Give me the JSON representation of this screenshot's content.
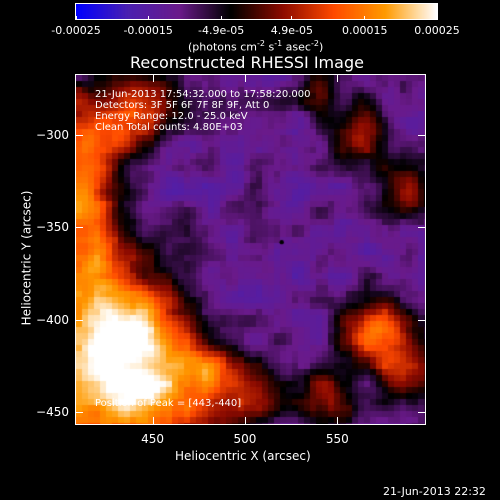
{
  "colorbar": {
    "min": -0.00025,
    "max": 0.00025,
    "tick_labels": [
      "-0.00025",
      "-0.00015",
      "-4.9e-05",
      "4.9e-05",
      "0.00015",
      "0.00025"
    ],
    "tick_values": [
      -0.00025,
      -0.00015,
      -4.9e-05,
      4.9e-05,
      0.00015,
      0.00025
    ],
    "unit_main": "(photons cm",
    "unit_sup1": "-2",
    "unit_mid": " s",
    "unit_sup2": "-1",
    "unit_end": " asec",
    "unit_sup3": "-2",
    "unit_close": ")"
  },
  "title": "Reconstructed RHESSI Image",
  "info": {
    "time_range": "21-Jun-2013 17:54:32.000 to 17:58:20.000",
    "detectors": "Detectors: 3F 5F 6F 7F 8F 9F, Att 0",
    "energy_range": "Energy Range: 12.0 - 25.0 keV",
    "clean": "Clean     Total counts: 4.80E+03",
    "peak": "Position of Peak = [443,-440]"
  },
  "axes": {
    "xlabel": "Heliocentric X (arcsec)",
    "ylabel": "Heliocentric Y (arcsec)",
    "xlim": [
      408,
      598
    ],
    "ylim": [
      -457,
      -267
    ],
    "xticks": [
      450,
      500,
      550
    ],
    "xtick_labels": [
      "450",
      "500",
      "550"
    ],
    "yticks": [
      -300,
      -350,
      -400,
      -450
    ],
    "ytick_labels": [
      "−300",
      "−350",
      "−400",
      "−450"
    ]
  },
  "marker": {
    "x": 520,
    "y": -358
  },
  "footer_timestamp": "21-Jun-2013 22:32",
  "colors": {
    "background": "#3c21ad",
    "colormap": [
      "#0000ff",
      "#4a1fb0",
      "#6a1a8a",
      "#000000",
      "#8b0a00",
      "#ff4a00",
      "#ff9a00",
      "#ffffff"
    ]
  }
}
